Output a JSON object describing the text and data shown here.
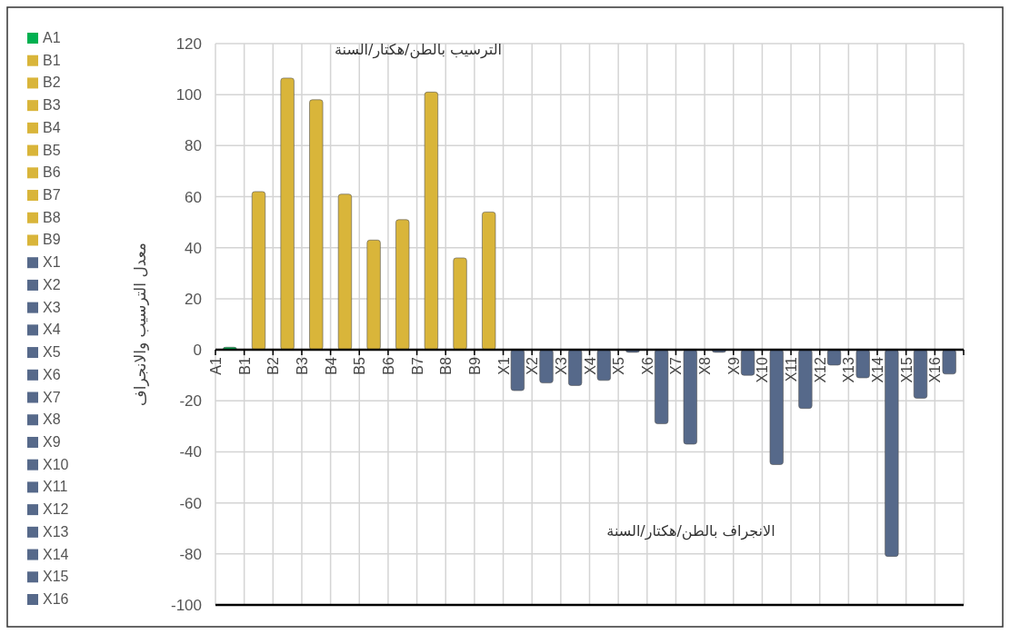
{
  "chart_data": {
    "type": "bar",
    "ylabel": "معدل الترسيب والانجراف",
    "annotations": [
      "الترسيب بالطن/هكتار/السنة",
      "الانجراف بالطن/هكتار/السنة"
    ],
    "categories": [
      "A1",
      "B1",
      "B2",
      "B3",
      "B4",
      "B5",
      "B6",
      "B7",
      "B8",
      "B9",
      "X1",
      "X2",
      "X3",
      "X4",
      "X5",
      "X6",
      "X7",
      "X8",
      "X9",
      "X10",
      "X11",
      "X12",
      "X13",
      "X14",
      "X15",
      "X16"
    ],
    "series": [
      {
        "name": "A1",
        "color": "#00b050",
        "values": [
          1,
          null,
          null,
          null,
          null,
          null,
          null,
          null,
          null,
          null,
          null,
          null,
          null,
          null,
          null,
          null,
          null,
          null,
          null,
          null,
          null,
          null,
          null,
          null,
          null,
          null
        ]
      },
      {
        "name": "B1",
        "color": "#d9b53a",
        "values": [
          null,
          62,
          null,
          null,
          null,
          null,
          null,
          null,
          null,
          null,
          null,
          null,
          null,
          null,
          null,
          null,
          null,
          null,
          null,
          null,
          null,
          null,
          null,
          null,
          null,
          null
        ]
      },
      {
        "name": "B2",
        "color": "#d9b53a",
        "values": [
          null,
          null,
          106.5,
          null,
          null,
          null,
          null,
          null,
          null,
          null,
          null,
          null,
          null,
          null,
          null,
          null,
          null,
          null,
          null,
          null,
          null,
          null,
          null,
          null,
          null,
          null
        ]
      },
      {
        "name": "B3",
        "color": "#d9b53a",
        "values": [
          null,
          null,
          null,
          98,
          null,
          null,
          null,
          null,
          null,
          null,
          null,
          null,
          null,
          null,
          null,
          null,
          null,
          null,
          null,
          null,
          null,
          null,
          null,
          null,
          null,
          null
        ]
      },
      {
        "name": "B4",
        "color": "#d9b53a",
        "values": [
          null,
          null,
          null,
          null,
          61,
          null,
          null,
          null,
          null,
          null,
          null,
          null,
          null,
          null,
          null,
          null,
          null,
          null,
          null,
          null,
          null,
          null,
          null,
          null,
          null,
          null
        ]
      },
      {
        "name": "B5",
        "color": "#d9b53a",
        "values": [
          null,
          null,
          null,
          null,
          null,
          43,
          null,
          null,
          null,
          null,
          null,
          null,
          null,
          null,
          null,
          null,
          null,
          null,
          null,
          null,
          null,
          null,
          null,
          null,
          null,
          null
        ]
      },
      {
        "name": "B6",
        "color": "#d9b53a",
        "values": [
          null,
          null,
          null,
          null,
          null,
          null,
          51,
          null,
          null,
          null,
          null,
          null,
          null,
          null,
          null,
          null,
          null,
          null,
          null,
          null,
          null,
          null,
          null,
          null,
          null,
          null
        ]
      },
      {
        "name": "B7",
        "color": "#d9b53a",
        "values": [
          null,
          null,
          null,
          null,
          null,
          null,
          null,
          101,
          null,
          null,
          null,
          null,
          null,
          null,
          null,
          null,
          null,
          null,
          null,
          null,
          null,
          null,
          null,
          null,
          null,
          null
        ]
      },
      {
        "name": "B8",
        "color": "#d9b53a",
        "values": [
          null,
          null,
          null,
          null,
          null,
          null,
          null,
          null,
          36,
          null,
          null,
          null,
          null,
          null,
          null,
          null,
          null,
          null,
          null,
          null,
          null,
          null,
          null,
          null,
          null,
          null
        ]
      },
      {
        "name": "B9",
        "color": "#d9b53a",
        "values": [
          null,
          null,
          null,
          null,
          null,
          null,
          null,
          null,
          null,
          54,
          null,
          null,
          null,
          null,
          null,
          null,
          null,
          null,
          null,
          null,
          null,
          null,
          null,
          null,
          null,
          null
        ]
      },
      {
        "name": "X1",
        "color": "#56698a",
        "values": [
          null,
          null,
          null,
          null,
          null,
          null,
          null,
          null,
          null,
          null,
          -16,
          null,
          null,
          null,
          null,
          null,
          null,
          null,
          null,
          null,
          null,
          null,
          null,
          null,
          null,
          null
        ]
      },
      {
        "name": "X2",
        "color": "#56698a",
        "values": [
          null,
          null,
          null,
          null,
          null,
          null,
          null,
          null,
          null,
          null,
          null,
          -13,
          null,
          null,
          null,
          null,
          null,
          null,
          null,
          null,
          null,
          null,
          null,
          null,
          null,
          null
        ]
      },
      {
        "name": "X3",
        "color": "#56698a",
        "values": [
          null,
          null,
          null,
          null,
          null,
          null,
          null,
          null,
          null,
          null,
          null,
          null,
          -14,
          null,
          null,
          null,
          null,
          null,
          null,
          null,
          null,
          null,
          null,
          null,
          null,
          null
        ]
      },
      {
        "name": "X4",
        "color": "#56698a",
        "values": [
          null,
          null,
          null,
          null,
          null,
          null,
          null,
          null,
          null,
          null,
          null,
          null,
          null,
          -12,
          null,
          null,
          null,
          null,
          null,
          null,
          null,
          null,
          null,
          null,
          null,
          null
        ]
      },
      {
        "name": "X5",
        "color": "#56698a",
        "values": [
          null,
          null,
          null,
          null,
          null,
          null,
          null,
          null,
          null,
          null,
          null,
          null,
          null,
          null,
          -1,
          null,
          null,
          null,
          null,
          null,
          null,
          null,
          null,
          null,
          null,
          null
        ]
      },
      {
        "name": "X6",
        "color": "#56698a",
        "values": [
          null,
          null,
          null,
          null,
          null,
          null,
          null,
          null,
          null,
          null,
          null,
          null,
          null,
          null,
          null,
          -29,
          null,
          null,
          null,
          null,
          null,
          null,
          null,
          null,
          null,
          null
        ]
      },
      {
        "name": "X7",
        "color": "#56698a",
        "values": [
          null,
          null,
          null,
          null,
          null,
          null,
          null,
          null,
          null,
          null,
          null,
          null,
          null,
          null,
          null,
          null,
          -37,
          null,
          null,
          null,
          null,
          null,
          null,
          null,
          null,
          null
        ]
      },
      {
        "name": "X8",
        "color": "#56698a",
        "values": [
          null,
          null,
          null,
          null,
          null,
          null,
          null,
          null,
          null,
          null,
          null,
          null,
          null,
          null,
          null,
          null,
          null,
          -1,
          null,
          null,
          null,
          null,
          null,
          null,
          null,
          null
        ]
      },
      {
        "name": "X9",
        "color": "#56698a",
        "values": [
          null,
          null,
          null,
          null,
          null,
          null,
          null,
          null,
          null,
          null,
          null,
          null,
          null,
          null,
          null,
          null,
          null,
          null,
          -10,
          null,
          null,
          null,
          null,
          null,
          null,
          null
        ]
      },
      {
        "name": "X10",
        "color": "#56698a",
        "values": [
          null,
          null,
          null,
          null,
          null,
          null,
          null,
          null,
          null,
          null,
          null,
          null,
          null,
          null,
          null,
          null,
          null,
          null,
          null,
          -45,
          null,
          null,
          null,
          null,
          null,
          null
        ]
      },
      {
        "name": "X11",
        "color": "#56698a",
        "values": [
          null,
          null,
          null,
          null,
          null,
          null,
          null,
          null,
          null,
          null,
          null,
          null,
          null,
          null,
          null,
          null,
          null,
          null,
          null,
          null,
          -23,
          null,
          null,
          null,
          null,
          null
        ]
      },
      {
        "name": "X12",
        "color": "#56698a",
        "values": [
          null,
          null,
          null,
          null,
          null,
          null,
          null,
          null,
          null,
          null,
          null,
          null,
          null,
          null,
          null,
          null,
          null,
          null,
          null,
          null,
          null,
          -6,
          null,
          null,
          null,
          null
        ]
      },
      {
        "name": "X13",
        "color": "#56698a",
        "values": [
          null,
          null,
          null,
          null,
          null,
          null,
          null,
          null,
          null,
          null,
          null,
          null,
          null,
          null,
          null,
          null,
          null,
          null,
          null,
          null,
          null,
          null,
          -11,
          null,
          null,
          null
        ]
      },
      {
        "name": "X14",
        "color": "#56698a",
        "values": [
          null,
          null,
          null,
          null,
          null,
          null,
          null,
          null,
          null,
          null,
          null,
          null,
          null,
          null,
          null,
          null,
          null,
          null,
          null,
          null,
          null,
          null,
          null,
          -81,
          null,
          null
        ]
      },
      {
        "name": "X15",
        "color": "#56698a",
        "values": [
          null,
          null,
          null,
          null,
          null,
          null,
          null,
          null,
          null,
          null,
          null,
          null,
          null,
          null,
          null,
          null,
          null,
          null,
          null,
          null,
          null,
          null,
          null,
          null,
          -19,
          null
        ]
      },
      {
        "name": "X16",
        "color": "#56698a",
        "values": [
          null,
          null,
          null,
          null,
          null,
          null,
          null,
          null,
          null,
          null,
          null,
          null,
          null,
          null,
          null,
          null,
          null,
          null,
          null,
          null,
          null,
          null,
          null,
          null,
          null,
          -9.5
        ]
      }
    ],
    "ylim": [
      -100,
      120
    ],
    "yticks": [
      -100,
      -80,
      -60,
      -40,
      -20,
      0,
      20,
      40,
      60,
      80,
      100,
      120
    ],
    "grid": true,
    "legend": "left"
  }
}
